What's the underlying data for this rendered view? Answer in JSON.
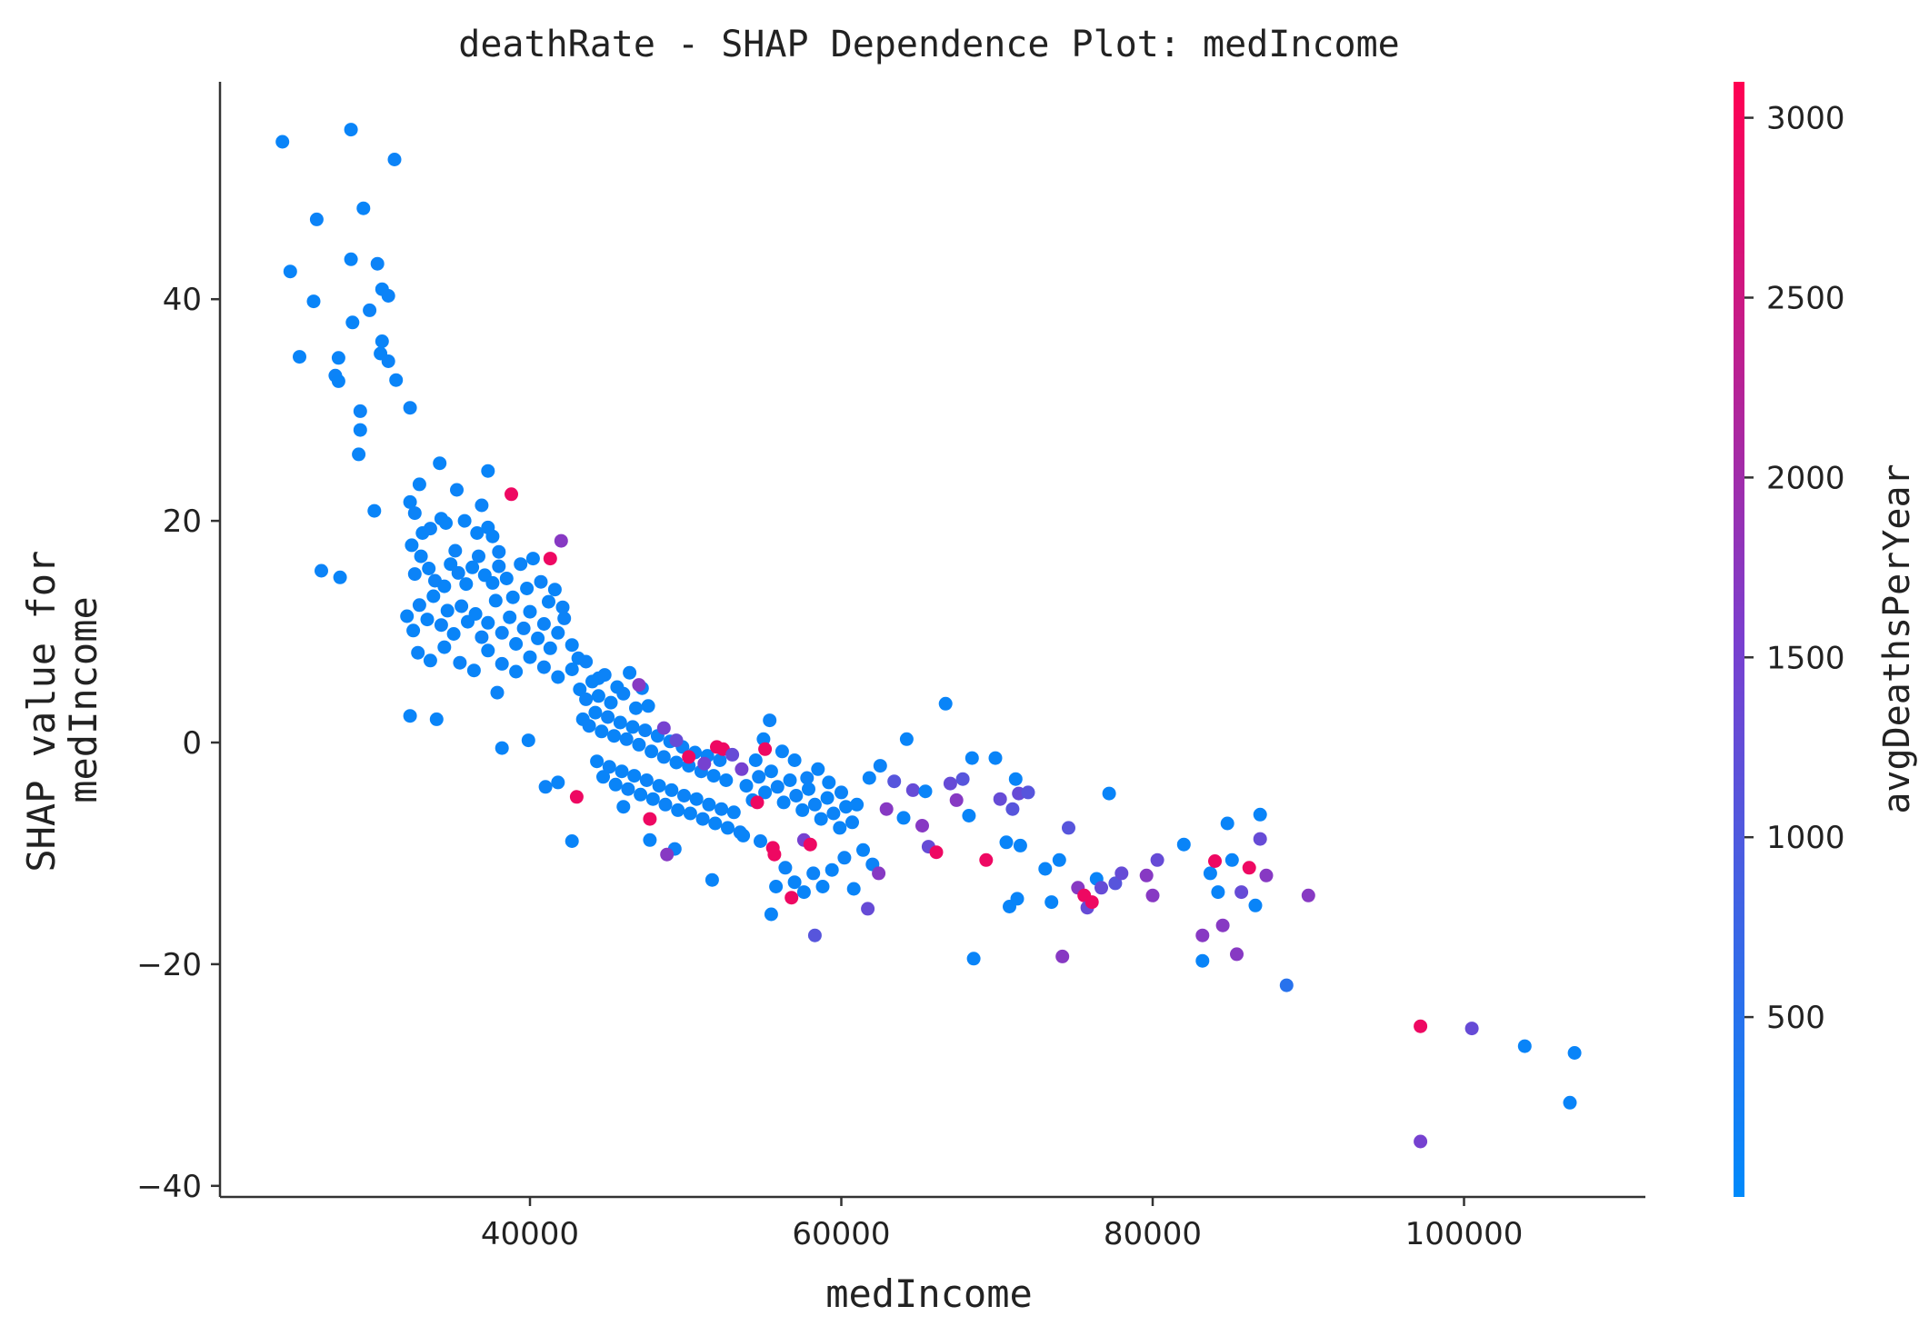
{
  "chart_data": {
    "type": "scatter",
    "title": "deathRate - SHAP Dependence Plot: medIncome",
    "xlabel": "medIncome",
    "ylabel": "SHAP value for\nmedIncome",
    "xlim": [
      20000,
      112000
    ],
    "ylim": [
      -40.5,
      60
    ],
    "x_ticks": [
      40000,
      60000,
      80000,
      100000
    ],
    "y_ticks": [
      40,
      20,
      0,
      -20,
      -40
    ],
    "x_tick_labels": [
      "40000",
      "60000",
      "80000",
      "100000"
    ],
    "y_tick_labels": [
      "40",
      "20",
      "0",
      "−20",
      "−40"
    ],
    "grid": false,
    "colorbar": {
      "label": "avgDeathsPerYear",
      "range": [
        0,
        3100
      ],
      "ticks": [
        500,
        1000,
        1500,
        2000,
        2500,
        3000
      ],
      "tick_labels": [
        "500",
        "1000",
        "1500",
        "2000",
        "2500",
        "3000"
      ],
      "colors": [
        "#008afb",
        "#7a3fcf",
        "#ff0052"
      ]
    },
    "point_color_note": "color encodes avgDeathsPerYear",
    "points": [
      [
        24100,
        54.2,
        120
      ],
      [
        28500,
        55.3,
        120
      ],
      [
        31300,
        52.6,
        150
      ],
      [
        24600,
        42.5,
        120
      ],
      [
        26300,
        47.2,
        150
      ],
      [
        29300,
        48.2,
        120
      ],
      [
        28500,
        43.6,
        120
      ],
      [
        30200,
        43.2,
        150
      ],
      [
        26100,
        39.8,
        120
      ],
      [
        28600,
        37.9,
        120
      ],
      [
        29700,
        39.0,
        150
      ],
      [
        30500,
        40.9,
        120
      ],
      [
        30900,
        40.3,
        150
      ],
      [
        25200,
        34.8,
        120
      ],
      [
        27700,
        34.7,
        120
      ],
      [
        27500,
        33.1,
        150
      ],
      [
        27700,
        32.6,
        120
      ],
      [
        30400,
        35.1,
        120
      ],
      [
        30900,
        34.4,
        150
      ],
      [
        31400,
        32.7,
        120
      ],
      [
        30500,
        36.2,
        120
      ],
      [
        29100,
        29.9,
        150
      ],
      [
        29100,
        28.2,
        120
      ],
      [
        29000,
        26.0,
        120
      ],
      [
        32300,
        30.2,
        150
      ],
      [
        30000,
        20.9,
        120
      ],
      [
        26600,
        15.5,
        150
      ],
      [
        27800,
        14.9,
        120
      ],
      [
        32300,
        21.7,
        120
      ],
      [
        32600,
        20.7,
        150
      ],
      [
        32900,
        23.3,
        120
      ],
      [
        34200,
        25.2,
        120
      ],
      [
        35300,
        22.8,
        150
      ],
      [
        37300,
        24.5,
        120
      ],
      [
        33100,
        18.9,
        120
      ],
      [
        33600,
        19.3,
        150
      ],
      [
        34300,
        20.2,
        120
      ],
      [
        34600,
        19.8,
        120
      ],
      [
        35200,
        17.3,
        150
      ],
      [
        35800,
        20.0,
        120
      ],
      [
        36600,
        18.9,
        120
      ],
      [
        36900,
        21.4,
        150
      ],
      [
        37300,
        19.4,
        120
      ],
      [
        37600,
        18.6,
        120
      ],
      [
        38000,
        17.2,
        150
      ],
      [
        32400,
        17.8,
        120
      ],
      [
        32600,
        15.2,
        150
      ],
      [
        33000,
        16.8,
        120
      ],
      [
        33500,
        15.7,
        120
      ],
      [
        33900,
        14.6,
        150
      ],
      [
        34500,
        14.1,
        120
      ],
      [
        34900,
        16.1,
        120
      ],
      [
        35400,
        15.3,
        150
      ],
      [
        35900,
        14.3,
        120
      ],
      [
        36300,
        15.8,
        120
      ],
      [
        36700,
        16.8,
        150
      ],
      [
        37100,
        15.1,
        120
      ],
      [
        37600,
        14.4,
        120
      ],
      [
        38000,
        15.9,
        150
      ],
      [
        38500,
        14.8,
        120
      ],
      [
        38900,
        13.1,
        120
      ],
      [
        39400,
        16.1,
        150
      ],
      [
        39800,
        13.9,
        120
      ],
      [
        40200,
        16.6,
        120
      ],
      [
        40700,
        14.5,
        150
      ],
      [
        41200,
        12.7,
        120
      ],
      [
        41600,
        13.8,
        120
      ],
      [
        42100,
        12.2,
        150
      ],
      [
        32100,
        11.4,
        120
      ],
      [
        32500,
        10.1,
        120
      ],
      [
        32900,
        12.4,
        150
      ],
      [
        33400,
        11.1,
        120
      ],
      [
        33800,
        13.2,
        120
      ],
      [
        34300,
        10.6,
        150
      ],
      [
        34700,
        11.9,
        120
      ],
      [
        35100,
        9.8,
        120
      ],
      [
        35600,
        12.3,
        150
      ],
      [
        36000,
        10.9,
        120
      ],
      [
        36500,
        11.6,
        120
      ],
      [
        36900,
        9.5,
        150
      ],
      [
        37300,
        10.8,
        120
      ],
      [
        37800,
        12.8,
        120
      ],
      [
        38200,
        9.9,
        150
      ],
      [
        38700,
        11.3,
        120
      ],
      [
        39100,
        8.9,
        120
      ],
      [
        39600,
        10.3,
        150
      ],
      [
        40000,
        11.8,
        120
      ],
      [
        40500,
        9.4,
        120
      ],
      [
        40900,
        10.7,
        150
      ],
      [
        41300,
        8.5,
        120
      ],
      [
        41800,
        9.9,
        120
      ],
      [
        42200,
        11.2,
        150
      ],
      [
        42700,
        8.8,
        120
      ],
      [
        43100,
        7.6,
        120
      ],
      [
        32800,
        8.1,
        150
      ],
      [
        33600,
        7.4,
        120
      ],
      [
        34500,
        8.6,
        120
      ],
      [
        35500,
        7.2,
        150
      ],
      [
        36400,
        6.5,
        120
      ],
      [
        37300,
        8.3,
        120
      ],
      [
        38200,
        7.1,
        150
      ],
      [
        39100,
        6.4,
        120
      ],
      [
        40000,
        7.7,
        120
      ],
      [
        40900,
        6.8,
        150
      ],
      [
        41800,
        5.9,
        120
      ],
      [
        42700,
        6.6,
        120
      ],
      [
        43600,
        7.3,
        150
      ],
      [
        44400,
        5.8,
        120
      ],
      [
        32300,
        2.4,
        120
      ],
      [
        34000,
        2.1,
        120
      ],
      [
        37900,
        4.5,
        150
      ],
      [
        38200,
        -0.5,
        120
      ],
      [
        39900,
        0.2,
        120
      ],
      [
        41000,
        -4.0,
        150
      ],
      [
        41800,
        -3.6,
        120
      ],
      [
        42700,
        -8.9,
        120
      ],
      [
        38800,
        22.4,
        2900
      ],
      [
        41300,
        16.6,
        2900
      ],
      [
        42000,
        18.2,
        1700
      ],
      [
        43000,
        -4.9,
        2900
      ],
      [
        43200,
        4.8,
        120
      ],
      [
        43600,
        3.9,
        150
      ],
      [
        44000,
        5.5,
        120
      ],
      [
        44400,
        4.2,
        120
      ],
      [
        44800,
        6.1,
        150
      ],
      [
        45200,
        3.6,
        120
      ],
      [
        45600,
        5.0,
        120
      ],
      [
        46000,
        4.4,
        150
      ],
      [
        46400,
        6.3,
        120
      ],
      [
        46800,
        3.1,
        120
      ],
      [
        47200,
        4.9,
        150
      ],
      [
        47600,
        3.3,
        120
      ],
      [
        43400,
        2.1,
        120
      ],
      [
        43800,
        1.5,
        150
      ],
      [
        44200,
        2.7,
        120
      ],
      [
        44600,
        1.0,
        120
      ],
      [
        45000,
        2.3,
        150
      ],
      [
        45400,
        0.6,
        120
      ],
      [
        45800,
        1.8,
        120
      ],
      [
        46200,
        0.3,
        150
      ],
      [
        46600,
        1.4,
        120
      ],
      [
        47000,
        -0.2,
        120
      ],
      [
        47400,
        1.1,
        150
      ],
      [
        47800,
        -0.8,
        120
      ],
      [
        48200,
        0.6,
        120
      ],
      [
        48600,
        -1.3,
        150
      ],
      [
        49000,
        0.1,
        120
      ],
      [
        49400,
        -1.8,
        120
      ],
      [
        49800,
        -0.4,
        150
      ],
      [
        50200,
        -2.1,
        120
      ],
      [
        50600,
        -0.9,
        120
      ],
      [
        51000,
        -2.6,
        150
      ],
      [
        51400,
        -1.2,
        120
      ],
      [
        51800,
        -3.0,
        120
      ],
      [
        52200,
        -1.6,
        150
      ],
      [
        52600,
        -3.4,
        120
      ],
      [
        44300,
        -1.7,
        120
      ],
      [
        44700,
        -3.1,
        120
      ],
      [
        45100,
        -2.2,
        150
      ],
      [
        45500,
        -3.8,
        120
      ],
      [
        45900,
        -2.6,
        120
      ],
      [
        46300,
        -4.2,
        150
      ],
      [
        46700,
        -3.0,
        120
      ],
      [
        47100,
        -4.7,
        120
      ],
      [
        47500,
        -3.4,
        150
      ],
      [
        47900,
        -5.1,
        120
      ],
      [
        48300,
        -3.9,
        120
      ],
      [
        48700,
        -5.6,
        150
      ],
      [
        49100,
        -4.3,
        120
      ],
      [
        49500,
        -6.1,
        120
      ],
      [
        49900,
        -4.8,
        150
      ],
      [
        50300,
        -6.4,
        120
      ],
      [
        50700,
        -5.1,
        120
      ],
      [
        51100,
        -6.9,
        150
      ],
      [
        51500,
        -5.6,
        120
      ],
      [
        51900,
        -7.3,
        120
      ],
      [
        52300,
        -6.0,
        150
      ],
      [
        52700,
        -7.7,
        120
      ],
      [
        53100,
        -6.3,
        120
      ],
      [
        53500,
        -8.1,
        150
      ],
      [
        46000,
        -5.8,
        120
      ],
      [
        47700,
        -8.8,
        120
      ],
      [
        49300,
        -9.6,
        150
      ],
      [
        51700,
        -12.4,
        120
      ],
      [
        53700,
        -8.4,
        120
      ],
      [
        54800,
        -8.9,
        150
      ],
      [
        55500,
        -15.5,
        120
      ],
      [
        55800,
        -13.0,
        120
      ],
      [
        56400,
        -11.3,
        150
      ],
      [
        57000,
        -12.6,
        120
      ],
      [
        57600,
        -13.5,
        120
      ],
      [
        58200,
        -11.8,
        150
      ],
      [
        58800,
        -13.0,
        120
      ],
      [
        59400,
        -11.5,
        120
      ],
      [
        60200,
        -10.4,
        150
      ],
      [
        60800,
        -13.2,
        120
      ],
      [
        61400,
        -9.7,
        120
      ],
      [
        62000,
        -11.0,
        150
      ],
      [
        53900,
        -3.9,
        120
      ],
      [
        54300,
        -5.2,
        120
      ],
      [
        54700,
        -3.1,
        150
      ],
      [
        55100,
        -4.5,
        120
      ],
      [
        55500,
        -2.6,
        120
      ],
      [
        55900,
        -4.0,
        150
      ],
      [
        56300,
        -5.4,
        120
      ],
      [
        56700,
        -3.4,
        120
      ],
      [
        57100,
        -4.8,
        150
      ],
      [
        57500,
        -6.1,
        120
      ],
      [
        57900,
        -4.2,
        120
      ],
      [
        58300,
        -5.6,
        150
      ],
      [
        58700,
        -6.9,
        120
      ],
      [
        59100,
        -5.0,
        120
      ],
      [
        59500,
        -6.4,
        150
      ],
      [
        59900,
        -7.7,
        120
      ],
      [
        60300,
        -5.8,
        120
      ],
      [
        60700,
        -7.2,
        150
      ],
      [
        54500,
        -1.6,
        120
      ],
      [
        55000,
        0.3,
        120
      ],
      [
        55400,
        2.0,
        150
      ],
      [
        56200,
        -0.8,
        120
      ],
      [
        57000,
        -1.6,
        120
      ],
      [
        57800,
        -3.2,
        150
      ],
      [
        58500,
        -2.4,
        120
      ],
      [
        59200,
        -3.6,
        120
      ],
      [
        60000,
        -4.5,
        150
      ],
      [
        61000,
        -5.6,
        120
      ],
      [
        61800,
        -3.2,
        120
      ],
      [
        62500,
        -2.1,
        150
      ],
      [
        47000,
        5.2,
        1700
      ],
      [
        48600,
        1.3,
        1500
      ],
      [
        49400,
        0.2,
        1300
      ],
      [
        50200,
        -1.3,
        2900
      ],
      [
        51200,
        -1.9,
        1500
      ],
      [
        52000,
        -0.4,
        2900
      ],
      [
        52400,
        -0.6,
        2900
      ],
      [
        53000,
        -1.1,
        1300
      ],
      [
        53600,
        -2.4,
        1500
      ],
      [
        54600,
        -5.4,
        2900
      ],
      [
        55100,
        -0.6,
        2900
      ],
      [
        55600,
        -9.5,
        2900
      ],
      [
        55700,
        -10.1,
        2900
      ],
      [
        56800,
        -14.0,
        2900
      ],
      [
        57600,
        -8.8,
        1500
      ],
      [
        58000,
        -9.2,
        2900
      ],
      [
        47700,
        -6.9,
        2900
      ],
      [
        48800,
        -10.1,
        1700
      ],
      [
        58300,
        -17.4,
        1100
      ],
      [
        61700,
        -15.0,
        1300
      ],
      [
        62400,
        -11.8,
        1700
      ],
      [
        62900,
        -6.0,
        1700
      ],
      [
        63400,
        -3.5,
        1100
      ],
      [
        64000,
        -6.8,
        120
      ],
      [
        64200,
        0.3,
        120
      ],
      [
        64600,
        -4.3,
        1300
      ],
      [
        65200,
        -7.5,
        1700
      ],
      [
        65400,
        -4.4,
        120
      ],
      [
        65600,
        -9.4,
        1300
      ],
      [
        66100,
        -9.9,
        2900
      ],
      [
        66700,
        3.5,
        120
      ],
      [
        67000,
        -3.7,
        1300
      ],
      [
        67400,
        -5.2,
        1700
      ],
      [
        67800,
        -3.3,
        1100
      ],
      [
        68200,
        -6.6,
        120
      ],
      [
        68400,
        -1.4,
        120
      ],
      [
        68500,
        -19.5,
        120
      ],
      [
        69300,
        -10.6,
        2900
      ],
      [
        69900,
        -1.4,
        120
      ],
      [
        70200,
        -5.1,
        1300
      ],
      [
        70600,
        -9.0,
        120
      ],
      [
        71000,
        -6.0,
        1100
      ],
      [
        71200,
        -3.3,
        120
      ],
      [
        71400,
        -4.6,
        1300
      ],
      [
        72000,
        -4.5,
        1100
      ],
      [
        71500,
        -9.3,
        120
      ],
      [
        70800,
        -14.8,
        120
      ],
      [
        71300,
        -14.1,
        120
      ],
      [
        73100,
        -11.4,
        120
      ],
      [
        73500,
        -14.4,
        120
      ],
      [
        74000,
        -10.6,
        120
      ],
      [
        74200,
        -19.3,
        1700
      ],
      [
        74600,
        -7.7,
        1100
      ],
      [
        75200,
        -13.1,
        1700
      ],
      [
        75600,
        -13.8,
        2900
      ],
      [
        75800,
        -14.9,
        1300
      ],
      [
        76100,
        -14.4,
        2900
      ],
      [
        76400,
        -12.3,
        120
      ],
      [
        76700,
        -13.1,
        1300
      ],
      [
        77200,
        -4.6,
        120
      ],
      [
        77600,
        -12.7,
        1100
      ],
      [
        78000,
        -11.8,
        1300
      ],
      [
        79600,
        -12.0,
        1700
      ],
      [
        80000,
        -13.8,
        1700
      ],
      [
        80300,
        -10.6,
        1300
      ],
      [
        82000,
        -9.2,
        120
      ],
      [
        83200,
        -17.4,
        1700
      ],
      [
        83200,
        -19.7,
        120
      ],
      [
        83700,
        -11.8,
        120
      ],
      [
        84000,
        -10.7,
        2900
      ],
      [
        84200,
        -13.5,
        120
      ],
      [
        84500,
        -16.5,
        1700
      ],
      [
        84800,
        -7.3,
        120
      ],
      [
        85100,
        -10.6,
        120
      ],
      [
        85400,
        -19.1,
        1700
      ],
      [
        85700,
        -13.5,
        1300
      ],
      [
        86200,
        -11.3,
        2900
      ],
      [
        86600,
        -14.7,
        120
      ],
      [
        86900,
        -8.7,
        1300
      ],
      [
        86900,
        -6.5,
        120
      ],
      [
        87300,
        -12.0,
        1700
      ],
      [
        88600,
        -21.9,
        500
      ],
      [
        90000,
        -13.8,
        1700
      ],
      [
        97200,
        -25.6,
        2900
      ],
      [
        97200,
        -36.0,
        1500
      ],
      [
        100500,
        -25.8,
        1300
      ],
      [
        103900,
        -27.4,
        120
      ],
      [
        106800,
        -32.5,
        120
      ],
      [
        107100,
        -28.0,
        120
      ]
    ]
  }
}
